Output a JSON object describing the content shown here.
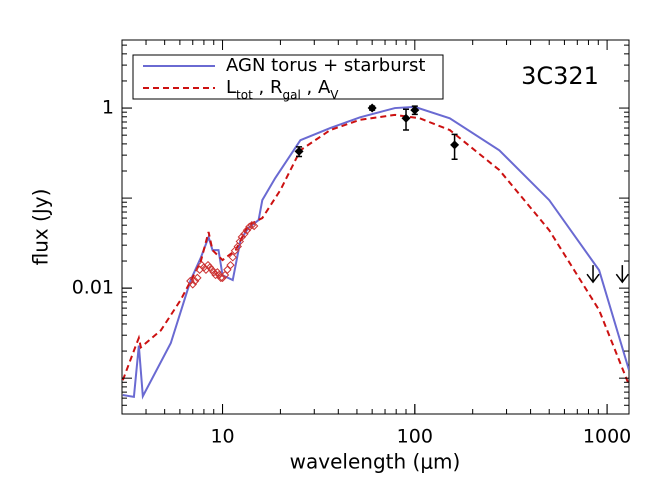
{
  "chart_data": {
    "type": "line",
    "title": "3C321",
    "x_label": "wavelength (μm)",
    "y_label": "flux (Jy)",
    "log_x": true,
    "log_y": true,
    "xlim": [
      3,
      1300
    ],
    "ylim": [
      0.0004,
      5.7
    ],
    "xticks": [
      10,
      100,
      1000
    ],
    "yticks": [
      0.01,
      1
    ],
    "legend": "top-left",
    "series": [
      {
        "name": "AGN torus + starburst",
        "color": "#6a6ad2",
        "style": "solid",
        "x": [
          3.03,
          3.46,
          3.67,
          3.85,
          5.38,
          6.83,
          7.69,
          8.46,
          8.87,
          9.53,
          10,
          11.3,
          12.4,
          13.6,
          15.4,
          16.1,
          18.8,
          25.4,
          36.3,
          51.9,
          78.8,
          100,
          152,
          275,
          500,
          909,
          1300
        ],
        "values": [
          0.00065,
          0.00062,
          0.0023,
          0.00063,
          0.00245,
          0.0123,
          0.0215,
          0.0369,
          0.0264,
          0.0264,
          0.0139,
          0.0123,
          0.0341,
          0.0464,
          0.057,
          0.095,
          0.167,
          0.44,
          0.6,
          0.79,
          1.0,
          1.03,
          0.77,
          0.34,
          0.095,
          0.0158,
          0.00123
        ]
      },
      {
        "name": [
          "L",
          "tot",
          " , R",
          "gal",
          " , A",
          "V"
        ],
        "color": "#cc1111",
        "style": "dashed",
        "x": [
          3.03,
          3.54,
          3.67,
          3.76,
          4.78,
          6.06,
          7.69,
          8.46,
          8.87,
          10,
          11.7,
          13.6,
          16.1,
          20,
          25.4,
          36.3,
          51.9,
          78.8,
          106,
          152,
          275,
          500,
          909,
          1300
        ],
        "values": [
          0.00095,
          0.0023,
          0.0028,
          0.0022,
          0.0034,
          0.0074,
          0.0195,
          0.042,
          0.0264,
          0.0205,
          0.0264,
          0.05,
          0.06,
          0.123,
          0.34,
          0.57,
          0.74,
          0.84,
          0.77,
          0.57,
          0.205,
          0.044,
          0.0057,
          0.00084
        ]
      },
      {
        "mark": "open-diamond",
        "color": "#cc3333",
        "x": [
          6.8,
          7.0,
          7.2,
          7.4,
          7.6,
          7.8,
          8.0,
          8.2,
          8.4,
          8.6,
          8.8,
          9.0,
          9.2,
          9.4,
          9.6,
          9.8,
          10.0,
          10.3,
          10.6,
          11.0,
          11.3,
          11.6,
          12.0,
          12.3,
          12.6,
          13.0,
          13.4,
          13.8,
          14.2,
          14.6
        ],
        "values": [
          0.012,
          0.011,
          0.012,
          0.013,
          0.016,
          0.018,
          0.017,
          0.016,
          0.018,
          0.017,
          0.016,
          0.015,
          0.014,
          0.015,
          0.014,
          0.013,
          0.013,
          0.014,
          0.016,
          0.018,
          0.022,
          0.026,
          0.029,
          0.033,
          0.037,
          0.04,
          0.044,
          0.048,
          0.05,
          0.049
        ]
      },
      {
        "mark": "diamond",
        "color": "#000000",
        "x": [
          25,
          60,
          90,
          100,
          161
        ],
        "values": [
          0.33,
          1.0,
          0.77,
          0.95,
          0.39
        ],
        "errors": [
          0.04,
          0.05,
          0.2,
          0.1,
          0.12
        ]
      },
      {
        "mark": "upper-limit",
        "color": "#000000",
        "x": [
          845,
          1200
        ],
        "values": [
          0.018,
          0.018
        ]
      }
    ]
  }
}
